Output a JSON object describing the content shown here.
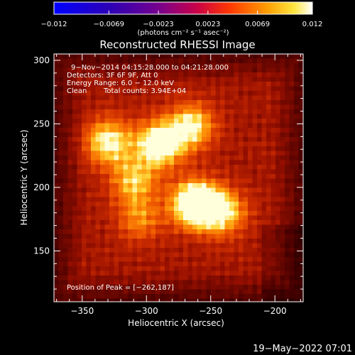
{
  "chart_data": {
    "type": "heatmap",
    "title": "Reconstructed RHESSI Image",
    "xlabel": "Heliocentric X (arcsec)",
    "ylabel": "Heliocentric Y (arcsec)",
    "xlim": [
      -372,
      -178
    ],
    "ylim": [
      110,
      305
    ],
    "x_ticks": [
      -350,
      -300,
      -250,
      -200
    ],
    "x_tick_labels": [
      "−350",
      "−300",
      "−250",
      "−200"
    ],
    "y_ticks": [
      150,
      200,
      250,
      300
    ],
    "y_tick_labels": [
      "150",
      "200",
      "250",
      "300"
    ],
    "colorbar": {
      "range": [
        -0.012,
        0.012
      ],
      "ticks": [
        -0.012,
        -0.0069,
        -0.0023,
        0.0023,
        0.0069,
        0.012
      ],
      "tick_labels": [
        "−0.012",
        "−0.0069",
        "−0.0023",
        "0.0023",
        "0.0069",
        "0.012"
      ],
      "unit_label": "(photons cm⁻² s⁻¹ asec⁻²)",
      "colormap": "red-temperature"
    },
    "annotations": {
      "time": "9−Nov−2014 04:15:28.000 to 04:21:28.000",
      "detectors": "Detectors: 3F 6F 9F, Att 0",
      "energy": "Energy Range: 6.0 − 12.0 keV",
      "clean_label": "Clean",
      "total_counts": "Total counts: 3.94E+04",
      "peak": "Position of Peak = [−262,187]"
    },
    "sources": [
      {
        "x": -262,
        "y": 187,
        "peak": 0.012
      },
      {
        "x": -290,
        "y": 234,
        "peak": 0.0095
      },
      {
        "x": -330,
        "y": 236,
        "peak": 0.008
      },
      {
        "x": -265,
        "y": 248,
        "peak": 0.0075
      },
      {
        "x": -310,
        "y": 205,
        "peak": 0.006
      },
      {
        "x": -240,
        "y": 180,
        "peak": 0.007
      },
      {
        "x": -305,
        "y": 175,
        "peak": 0.0045
      }
    ]
  },
  "footer": {
    "timestamp": "19−May−2022 07:01"
  },
  "colors": {
    "background": "#000000",
    "foreground": "#ffffff"
  }
}
